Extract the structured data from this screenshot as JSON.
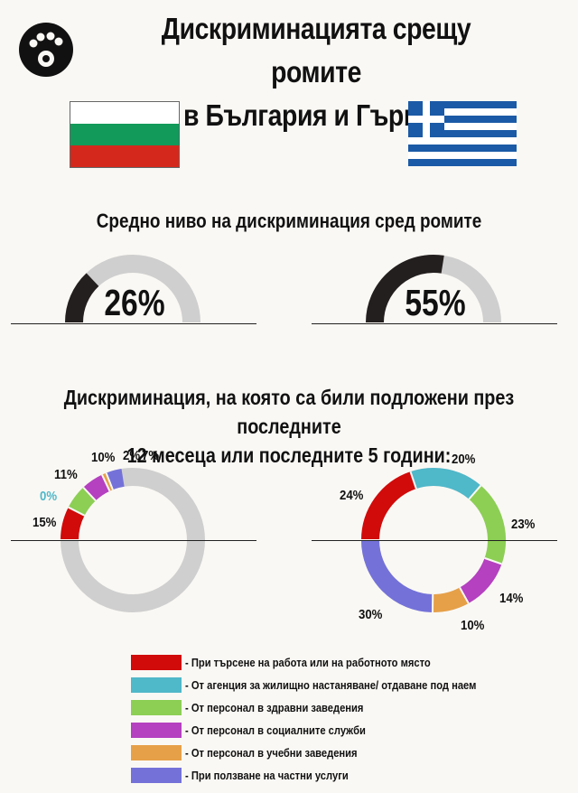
{
  "title_line1": "Дискриминацията срещу ромите",
  "title_line2": "в България и Гърция",
  "countries": [
    {
      "name": "България",
      "flag_colors": [
        "#ffffff",
        "#119a5a",
        "#d5281d"
      ]
    },
    {
      "name": "Гърция",
      "flag_colors": [
        "#1b5aa6",
        "#ffffff"
      ]
    }
  ],
  "gauge_section_title": "Средно ниво на дискриминация сред ромите",
  "donut_section_title_line1": "Дискриминация, на която са били подложени през последните",
  "donut_section_title_line2": "12 месеца или последните 5 години:",
  "colors": {
    "dark": "#231f1f",
    "light": "#cfcfcf",
    "categories": [
      "#d10a0a",
      "#4fb8c9",
      "#8ccf54",
      "#b540c0",
      "#e6a048",
      "#7472d8"
    ]
  },
  "chart_data": [
    {
      "type": "gauge",
      "country": "България",
      "value": 26,
      "label": "26%",
      "max": 100
    },
    {
      "type": "gauge",
      "country": "Гърция",
      "value": 55,
      "label": "55%",
      "max": 100
    },
    {
      "type": "pie",
      "country": "България",
      "categories": [
        "При търсене на работа или на работното място",
        "От агенция за жилищно настаняване/ отдаване под наем",
        "От персонал в здравни заведения",
        "От персонал в социалните служби",
        "От персонал в учебни заведения",
        "При ползване на частни услуги"
      ],
      "values": [
        15,
        0,
        11,
        10,
        2,
        7
      ],
      "labels": [
        "15%",
        "0%",
        "11%",
        "10%",
        "2%",
        "7%"
      ]
    },
    {
      "type": "pie",
      "country": "Гърция",
      "categories": [
        "При търсене на работа или на работното място",
        "От агенция за жилищно настаняване/ отдаване под наем",
        "От персонал в здравни заведения",
        "От персонал в социалните служби",
        "От персонал в учебни заведения",
        "При ползване на частни услуги"
      ],
      "values": [
        24,
        20,
        23,
        14,
        10,
        30
      ],
      "labels": [
        "24%",
        "20%",
        "23%",
        "14%",
        "10%",
        "30%"
      ]
    }
  ],
  "legend": [
    "- При търсене на работа или на работното място",
    "- От агенция за жилищно настаняване/ отдаване под наем",
    "- От персонал в здравни заведения",
    "- От персонал в социалните служби",
    "- От персонал в учебни заведения",
    "- При ползване на частни услуги"
  ]
}
